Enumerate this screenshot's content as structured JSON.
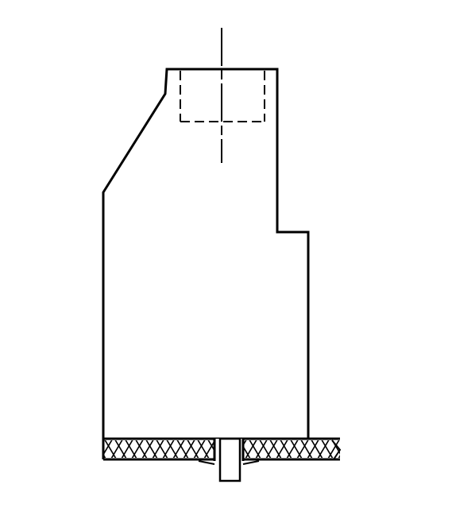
{
  "drawing": {
    "kind": "engineering-section-drawing",
    "stroke_color": "#000000",
    "background_color": "#ffffff",
    "features": {
      "body_outline": "solid",
      "bore": "hidden-dashed",
      "centerline": "dash-dot",
      "base_plate": "cross-hatched",
      "fastener": "hex-bolt"
    }
  }
}
